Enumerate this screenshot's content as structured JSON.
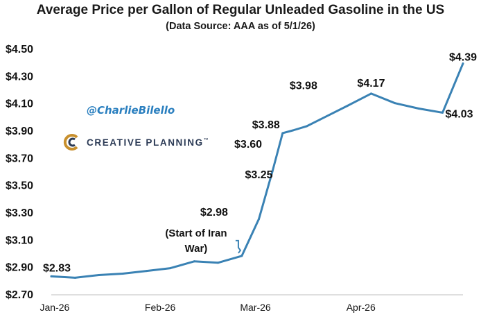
{
  "header": {
    "title": "Average Price per Gallon of Regular Unleaded Gasoline in the US",
    "subtitle": "(Data Source: AAA as of 5/1/26)"
  },
  "watermark": {
    "handle": "@CharlieBilello",
    "brand": "CREATIVE PLANNING",
    "brand_symbol": "™",
    "logo_icon": "creative-planning-c-logo",
    "handle_color": "#2a7fbf",
    "brand_color": "#2b3a55",
    "logo_color": "#c8902e"
  },
  "chart_data": {
    "type": "line",
    "title": "Average Price per Gallon of Regular Unleaded Gasoline in the US",
    "subtitle": "(Data Source: AAA as of 5/1/26)",
    "xlabel": "",
    "ylabel": "",
    "series_color": "#3a82b4",
    "ylim": [
      2.7,
      4.5
    ],
    "yticks": [
      "$4.50",
      "$4.30",
      "$4.10",
      "$3.90",
      "$3.70",
      "$3.50",
      "$3.30",
      "$3.10",
      "$2.90",
      "$2.70"
    ],
    "ytick_values": [
      4.5,
      4.3,
      4.1,
      3.9,
      3.7,
      3.5,
      3.3,
      3.1,
      2.9,
      2.7
    ],
    "xticks": [
      "Jan-26",
      "Feb-26",
      "Mar-26",
      "Apr-26"
    ],
    "xtick_dates": [
      "2026-01-01",
      "2026-02-01",
      "2026-03-01",
      "2026-04-01"
    ],
    "grid": false,
    "legend": "none",
    "x": [
      "2025-12-31",
      "2026-01-07",
      "2026-01-14",
      "2026-01-21",
      "2026-01-28",
      "2026-02-04",
      "2026-02-11",
      "2026-02-18",
      "2026-02-25",
      "2026-03-02",
      "2026-03-06",
      "2026-03-09",
      "2026-03-12",
      "2026-03-16",
      "2026-03-20",
      "2026-03-28",
      "2026-04-04",
      "2026-04-11",
      "2026-04-18",
      "2026-04-25",
      "2026-05-01"
    ],
    "values": [
      2.83,
      2.82,
      2.84,
      2.85,
      2.87,
      2.89,
      2.94,
      2.93,
      2.98,
      3.25,
      3.6,
      3.88,
      3.9,
      3.93,
      3.98,
      4.08,
      4.17,
      4.1,
      4.06,
      4.03,
      4.39
    ],
    "data_labels": [
      {
        "text": "$2.83",
        "x": "2025-12-31",
        "value": 2.83
      },
      {
        "text": "$2.98",
        "x": "2026-02-25",
        "value": 2.98
      },
      {
        "text": "$3.25",
        "x": "2026-03-02",
        "value": 3.25
      },
      {
        "text": "$3.60",
        "x": "2026-03-06",
        "value": 3.6
      },
      {
        "text": "$3.88",
        "x": "2026-03-09",
        "value": 3.88
      },
      {
        "text": "$3.98",
        "x": "2026-03-20",
        "value": 3.98
      },
      {
        "text": "$4.17",
        "x": "2026-04-04",
        "value": 4.17
      },
      {
        "text": "$4.03",
        "x": "2026-04-25",
        "value": 4.03
      },
      {
        "text": "$4.39",
        "x": "2026-05-01",
        "value": 4.39
      }
    ],
    "annotation": {
      "lines": [
        "(Start of Iran",
        "War)"
      ],
      "x": "2026-02-25",
      "value": 2.98
    }
  }
}
